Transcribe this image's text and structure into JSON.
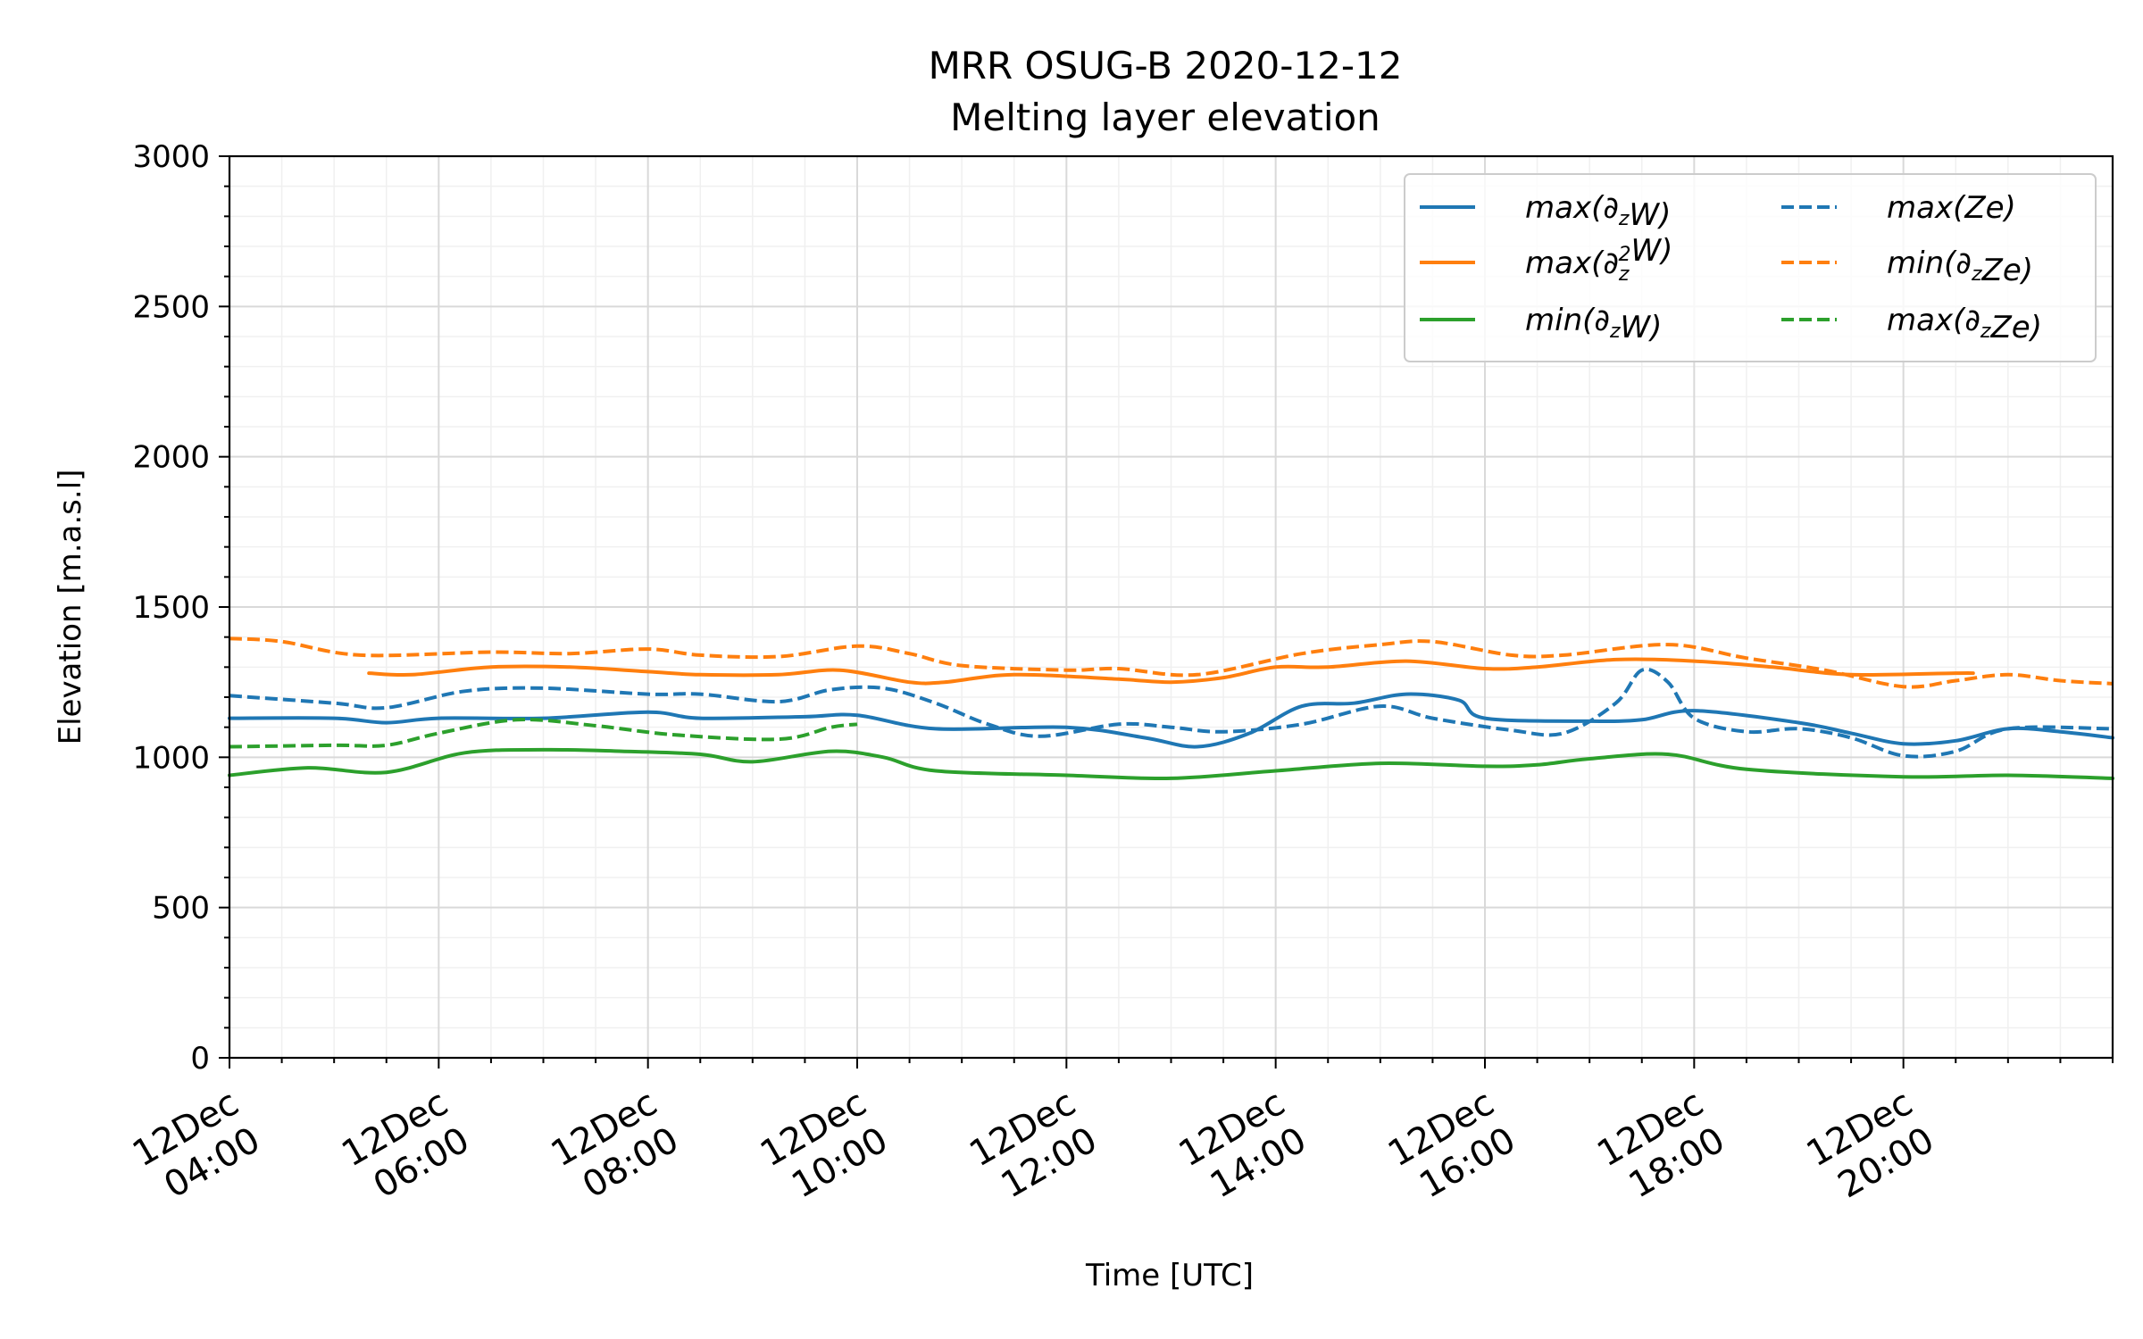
{
  "chart_data": {
    "type": "line",
    "title": [
      "MRR OSUG-B 2020-12-12",
      "Melting layer elevation"
    ],
    "xlabel": "Time [UTC]",
    "ylabel": "Elevation [m.a.s.l]",
    "xlim": [
      "2020-12-12T04:00",
      "2020-12-12T22:00"
    ],
    "ylim": [
      0,
      3000
    ],
    "yticks": [
      0,
      500,
      1000,
      1500,
      2000,
      2500,
      3000
    ],
    "xtick_values": [
      "2020-12-12T04:00",
      "2020-12-12T06:00",
      "2020-12-12T08:00",
      "2020-12-12T10:00",
      "2020-12-12T12:00",
      "2020-12-12T14:00",
      "2020-12-12T16:00",
      "2020-12-12T18:00",
      "2020-12-12T20:00"
    ],
    "xtick_labels": [
      [
        "12Dec",
        "04:00"
      ],
      [
        "12Dec",
        "06:00"
      ],
      [
        "12Dec",
        "08:00"
      ],
      [
        "12Dec",
        "10:00"
      ],
      [
        "12Dec",
        "12:00"
      ],
      [
        "12Dec",
        "14:00"
      ],
      [
        "12Dec",
        "16:00"
      ],
      [
        "12Dec",
        "18:00"
      ],
      [
        "12Dec",
        "20:00"
      ]
    ],
    "grid": true,
    "legend_position": "top-right",
    "series": [
      {
        "name": "max(∂zW)",
        "label_parts": [
          [
            "max(∂",
            ""
          ],
          [
            "z",
            "sub"
          ],
          [
            "W)",
            ""
          ]
        ],
        "color": "#1f77b4",
        "style": "solid",
        "points": [
          [
            "2020-12-12T04:00",
            1130
          ],
          [
            "2020-12-12T05:00",
            1130
          ],
          [
            "2020-12-12T05:30",
            1115
          ],
          [
            "2020-12-12T06:00",
            1130
          ],
          [
            "2020-12-12T07:00",
            1130
          ],
          [
            "2020-12-12T08:00",
            1150
          ],
          [
            "2020-12-12T08:30",
            1130
          ],
          [
            "2020-12-12T09:30",
            1135
          ],
          [
            "2020-12-12T10:00",
            1140
          ],
          [
            "2020-12-12T10:45",
            1095
          ],
          [
            "2020-12-12T12:00",
            1100
          ],
          [
            "2020-12-12T12:45",
            1065
          ],
          [
            "2020-12-12T13:15",
            1035
          ],
          [
            "2020-12-12T13:45",
            1080
          ],
          [
            "2020-12-12T14:15",
            1170
          ],
          [
            "2020-12-12T14:45",
            1180
          ],
          [
            "2020-12-12T15:15",
            1210
          ],
          [
            "2020-12-12T15:45",
            1190
          ],
          [
            "2020-12-12T16:00",
            1130
          ],
          [
            "2020-12-12T17:00",
            1120
          ],
          [
            "2020-12-12T17:30",
            1125
          ],
          [
            "2020-12-12T18:00",
            1155
          ],
          [
            "2020-12-12T19:00",
            1115
          ],
          [
            "2020-12-12T19:30",
            1080
          ],
          [
            "2020-12-12T20:00",
            1045
          ],
          [
            "2020-12-12T20:30",
            1055
          ],
          [
            "2020-12-12T21:00",
            1095
          ],
          [
            "2020-12-12T21:30",
            1085
          ],
          [
            "2020-12-12T22:00",
            1065
          ]
        ]
      },
      {
        "name": "max(∂z²W)",
        "label_parts": [
          [
            "max(∂",
            ""
          ],
          [
            "z",
            "sub"
          ],
          [
            "2",
            "sup"
          ],
          [
            "W)",
            ""
          ]
        ],
        "color": "#ff7f0e",
        "style": "solid",
        "points": [
          [
            "2020-12-12T05:20",
            1280
          ],
          [
            "2020-12-12T05:45",
            1275
          ],
          [
            "2020-12-12T06:30",
            1300
          ],
          [
            "2020-12-12T07:15",
            1300
          ],
          [
            "2020-12-12T08:00",
            1285
          ],
          [
            "2020-12-12T08:30",
            1275
          ],
          [
            "2020-12-12T09:15",
            1275
          ],
          [
            "2020-12-12T09:50",
            1290
          ],
          [
            "2020-12-12T10:30",
            1250
          ],
          [
            "2020-12-12T10:50",
            1250
          ],
          [
            "2020-12-12T11:30",
            1275
          ],
          [
            "2020-12-12T12:30",
            1260
          ],
          [
            "2020-12-12T13:00",
            1250
          ],
          [
            "2020-12-12T13:30",
            1265
          ],
          [
            "2020-12-12T14:00",
            1300
          ],
          [
            "2020-12-12T14:30",
            1300
          ],
          [
            "2020-12-12T15:15",
            1320
          ],
          [
            "2020-12-12T16:00",
            1295
          ],
          [
            "2020-12-12T16:30",
            1300
          ],
          [
            "2020-12-12T17:15",
            1325
          ],
          [
            "2020-12-12T18:00",
            1320
          ],
          [
            "2020-12-12T18:45",
            1300
          ],
          [
            "2020-12-12T19:30",
            1275
          ],
          [
            "2020-12-12T20:30",
            1280
          ],
          [
            "2020-12-12T20:40",
            1280
          ]
        ]
      },
      {
        "name": "min(∂zW)",
        "label_parts": [
          [
            "min(∂",
            ""
          ],
          [
            "z",
            "sub"
          ],
          [
            "W)",
            ""
          ]
        ],
        "color": "#2ca02c",
        "style": "solid",
        "points": [
          [
            "2020-12-12T04:00",
            940
          ],
          [
            "2020-12-12T04:45",
            965
          ],
          [
            "2020-12-12T05:30",
            950
          ],
          [
            "2020-12-12T06:15",
            1015
          ],
          [
            "2020-12-12T07:00",
            1025
          ],
          [
            "2020-12-12T07:45",
            1020
          ],
          [
            "2020-12-12T08:30",
            1010
          ],
          [
            "2020-12-12T09:00",
            985
          ],
          [
            "2020-12-12T09:45",
            1020
          ],
          [
            "2020-12-12T10:15",
            1000
          ],
          [
            "2020-12-12T10:45",
            955
          ],
          [
            "2020-12-12T12:00",
            940
          ],
          [
            "2020-12-12T13:00",
            930
          ],
          [
            "2020-12-12T14:00",
            955
          ],
          [
            "2020-12-12T15:00",
            980
          ],
          [
            "2020-12-12T16:00",
            970
          ],
          [
            "2020-12-12T16:30",
            975
          ],
          [
            "2020-12-12T17:00",
            995
          ],
          [
            "2020-12-12T17:45",
            1010
          ],
          [
            "2020-12-12T18:30",
            960
          ],
          [
            "2020-12-12T20:00",
            935
          ],
          [
            "2020-12-12T21:00",
            940
          ],
          [
            "2020-12-12T22:00",
            930
          ]
        ]
      },
      {
        "name": "max(Ze)",
        "label_parts": [
          [
            "max(Ze)",
            ""
          ]
        ],
        "color": "#1f77b4",
        "style": "dashed",
        "points": [
          [
            "2020-12-12T04:00",
            1205
          ],
          [
            "2020-12-12T05:00",
            1180
          ],
          [
            "2020-12-12T05:30",
            1165
          ],
          [
            "2020-12-12T06:15",
            1220
          ],
          [
            "2020-12-12T07:00",
            1230
          ],
          [
            "2020-12-12T08:00",
            1210
          ],
          [
            "2020-12-12T08:30",
            1210
          ],
          [
            "2020-12-12T09:15",
            1185
          ],
          [
            "2020-12-12T09:45",
            1225
          ],
          [
            "2020-12-12T10:15",
            1230
          ],
          [
            "2020-12-12T10:45",
            1180
          ],
          [
            "2020-12-12T11:15",
            1110
          ],
          [
            "2020-12-12T11:45",
            1070
          ],
          [
            "2020-12-12T12:30",
            1110
          ],
          [
            "2020-12-12T13:00",
            1100
          ],
          [
            "2020-12-12T13:30",
            1085
          ],
          [
            "2020-12-12T14:15",
            1110
          ],
          [
            "2020-12-12T15:00",
            1170
          ],
          [
            "2020-12-12T15:30",
            1130
          ],
          [
            "2020-12-12T16:15",
            1090
          ],
          [
            "2020-12-12T16:45",
            1080
          ],
          [
            "2020-12-12T17:15",
            1180
          ],
          [
            "2020-12-12T17:30",
            1290
          ],
          [
            "2020-12-12T17:45",
            1250
          ],
          [
            "2020-12-12T18:00",
            1130
          ],
          [
            "2020-12-12T18:30",
            1085
          ],
          [
            "2020-12-12T19:00",
            1095
          ],
          [
            "2020-12-12T19:30",
            1065
          ],
          [
            "2020-12-12T20:00",
            1005
          ],
          [
            "2020-12-12T20:30",
            1020
          ],
          [
            "2020-12-12T21:00",
            1095
          ],
          [
            "2020-12-12T22:00",
            1095
          ]
        ]
      },
      {
        "name": "min(∂zZe)",
        "label_parts": [
          [
            "min(∂",
            ""
          ],
          [
            "z",
            "sub"
          ],
          [
            "Ze)",
            ""
          ]
        ],
        "color": "#ff7f0e",
        "style": "dashed",
        "points": [
          [
            "2020-12-12T04:00",
            1395
          ],
          [
            "2020-12-12T04:30",
            1385
          ],
          [
            "2020-12-12T05:15",
            1340
          ],
          [
            "2020-12-12T06:30",
            1350
          ],
          [
            "2020-12-12T07:15",
            1345
          ],
          [
            "2020-12-12T08:00",
            1360
          ],
          [
            "2020-12-12T08:30",
            1340
          ],
          [
            "2020-12-12T09:15",
            1335
          ],
          [
            "2020-12-12T10:00",
            1370
          ],
          [
            "2020-12-12T10:30",
            1345
          ],
          [
            "2020-12-12T11:00",
            1305
          ],
          [
            "2020-12-12T12:00",
            1290
          ],
          [
            "2020-12-12T12:30",
            1295
          ],
          [
            "2020-12-12T13:15",
            1275
          ],
          [
            "2020-12-12T14:15",
            1345
          ],
          [
            "2020-12-12T15:00",
            1375
          ],
          [
            "2020-12-12T15:30",
            1385
          ],
          [
            "2020-12-12T16:15",
            1340
          ],
          [
            "2020-12-12T16:45",
            1340
          ],
          [
            "2020-12-12T17:45",
            1375
          ],
          [
            "2020-12-12T18:30",
            1330
          ],
          [
            "2020-12-12T19:15",
            1290
          ],
          [
            "2020-12-12T20:00",
            1235
          ],
          [
            "2020-12-12T20:30",
            1255
          ],
          [
            "2020-12-12T21:00",
            1275
          ],
          [
            "2020-12-12T21:30",
            1255
          ],
          [
            "2020-12-12T22:00",
            1245
          ]
        ]
      },
      {
        "name": "max(∂zZe)",
        "label_parts": [
          [
            "max(∂",
            ""
          ],
          [
            "z",
            "sub"
          ],
          [
            "Ze)",
            ""
          ]
        ],
        "color": "#2ca02c",
        "style": "dashed",
        "points": [
          [
            "2020-12-12T04:00",
            1035
          ],
          [
            "2020-12-12T05:00",
            1040
          ],
          [
            "2020-12-12T05:30",
            1040
          ],
          [
            "2020-12-12T06:00",
            1080
          ],
          [
            "2020-12-12T06:45",
            1125
          ],
          [
            "2020-12-12T07:30",
            1105
          ],
          [
            "2020-12-12T08:15",
            1075
          ],
          [
            "2020-12-12T09:15",
            1060
          ],
          [
            "2020-12-12T09:45",
            1100
          ],
          [
            "2020-12-12T10:00",
            1110
          ]
        ]
      }
    ]
  }
}
